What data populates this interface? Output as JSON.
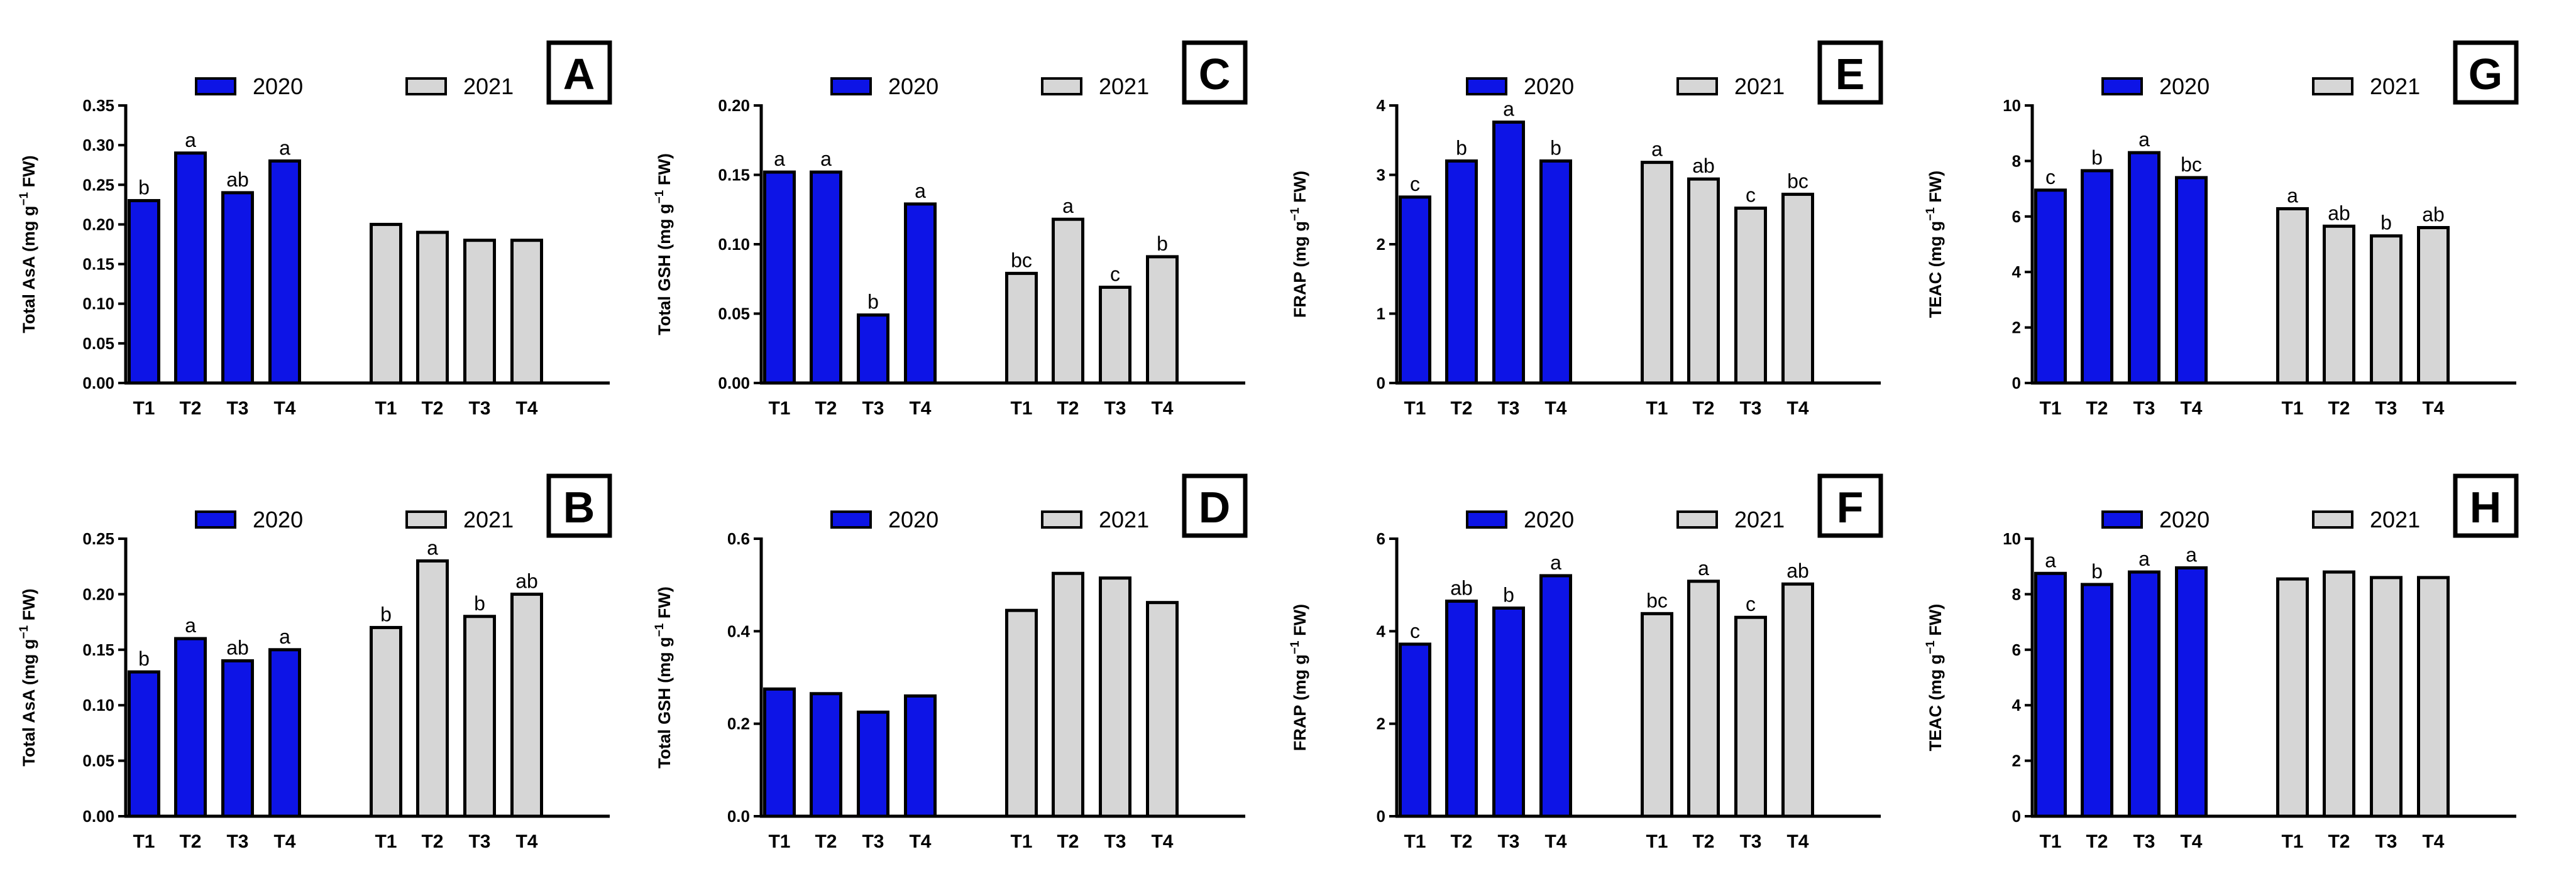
{
  "colors": {
    "series_2020": "#0d14e6",
    "series_2021": "#d6d6d6",
    "outline": "#000000"
  },
  "chart_data": [
    {
      "panel": "A",
      "type": "bar",
      "ylabel_main": "Total AsA (mg g",
      "ylabel_sup": "−1",
      "ylabel_end": " FW)",
      "ylim": [
        0,
        0.35
      ],
      "yticks": [
        "0.00",
        "0.05",
        "0.10",
        "0.15",
        "0.20",
        "0.25",
        "0.30",
        "0.35"
      ],
      "categories": [
        "T1",
        "T2",
        "T3",
        "T4"
      ],
      "series": [
        {
          "name": "2020",
          "values": [
            0.23,
            0.29,
            0.24,
            0.28
          ],
          "letters": [
            "b",
            "a",
            "ab",
            "a"
          ]
        },
        {
          "name": "2021",
          "values": [
            0.2,
            0.19,
            0.18,
            0.18
          ],
          "letters": [
            "",
            "",
            "",
            ""
          ]
        }
      ]
    },
    {
      "panel": "C",
      "type": "bar",
      "ylabel_main": "Total GSH (mg g",
      "ylabel_sup": "−1",
      "ylabel_end": " FW)",
      "ylim": [
        0,
        0.2
      ],
      "yticks": [
        "0.00",
        "0.05",
        "0.10",
        "0.15",
        "0.20"
      ],
      "categories": [
        "T1",
        "T2",
        "T3",
        "T4"
      ],
      "series": [
        {
          "name": "2020",
          "values": [
            0.152,
            0.152,
            0.049,
            0.129
          ],
          "letters": [
            "a",
            "a",
            "b",
            "a"
          ]
        },
        {
          "name": "2021",
          "values": [
            0.079,
            0.118,
            0.069,
            0.091
          ],
          "letters": [
            "bc",
            "a",
            "c",
            "b"
          ]
        }
      ]
    },
    {
      "panel": "E",
      "type": "bar",
      "ylabel_main": "FRAP (mg g",
      "ylabel_sup": "−1",
      "ylabel_end": " FW)",
      "ylim": [
        0,
        4
      ],
      "yticks": [
        "0",
        "1",
        "2",
        "3",
        "4"
      ],
      "categories": [
        "T1",
        "T2",
        "T3",
        "T4"
      ],
      "series": [
        {
          "name": "2020",
          "values": [
            2.68,
            3.2,
            3.76,
            3.2
          ],
          "letters": [
            "c",
            "b",
            "a",
            "b"
          ]
        },
        {
          "name": "2021",
          "values": [
            3.18,
            2.94,
            2.52,
            2.72
          ],
          "letters": [
            "a",
            "ab",
            "c",
            "bc"
          ]
        }
      ]
    },
    {
      "panel": "G",
      "type": "bar",
      "ylabel_main": "TEAC (mg g",
      "ylabel_sup": "−1",
      "ylabel_end": " FW)",
      "ylim": [
        0,
        10
      ],
      "yticks": [
        "0",
        "2",
        "4",
        "6",
        "8",
        "10"
      ],
      "categories": [
        "T1",
        "T2",
        "T3",
        "T4"
      ],
      "series": [
        {
          "name": "2020",
          "values": [
            6.95,
            7.65,
            8.3,
            7.4
          ],
          "letters": [
            "c",
            "b",
            "a",
            "bc"
          ]
        },
        {
          "name": "2021",
          "values": [
            6.28,
            5.65,
            5.3,
            5.6
          ],
          "letters": [
            "a",
            "ab",
            "b",
            "ab"
          ]
        }
      ]
    },
    {
      "panel": "B",
      "type": "bar",
      "ylabel_main": "Total AsA (mg g",
      "ylabel_sup": "−1",
      "ylabel_end": " FW)",
      "ylim": [
        0,
        0.25
      ],
      "yticks": [
        "0.00",
        "0.05",
        "0.10",
        "0.15",
        "0.20",
        "0.25"
      ],
      "categories": [
        "T1",
        "T2",
        "T3",
        "T4"
      ],
      "series": [
        {
          "name": "2020",
          "values": [
            0.13,
            0.16,
            0.14,
            0.15
          ],
          "letters": [
            "b",
            "a",
            "ab",
            "a"
          ]
        },
        {
          "name": "2021",
          "values": [
            0.17,
            0.23,
            0.18,
            0.2
          ],
          "letters": [
            "b",
            "a",
            "b",
            "ab"
          ]
        }
      ]
    },
    {
      "panel": "D",
      "type": "bar",
      "ylabel_main": "Total GSH (mg g",
      "ylabel_sup": "−1",
      "ylabel_end": " FW)",
      "ylim": [
        0,
        0.6
      ],
      "yticks": [
        "0.0",
        "0.2",
        "0.4",
        "0.6"
      ],
      "categories": [
        "T1",
        "T2",
        "T3",
        "T4"
      ],
      "series": [
        {
          "name": "2020",
          "values": [
            0.275,
            0.265,
            0.225,
            0.26
          ],
          "letters": [
            "",
            "",
            "",
            ""
          ]
        },
        {
          "name": "2021",
          "values": [
            0.445,
            0.525,
            0.515,
            0.462
          ],
          "letters": [
            "",
            "",
            "",
            ""
          ]
        }
      ]
    },
    {
      "panel": "F",
      "type": "bar",
      "ylabel_main": "FRAP (mg g",
      "ylabel_sup": "−1",
      "ylabel_end": " FW)",
      "ylim": [
        0,
        6
      ],
      "yticks": [
        "0",
        "2",
        "4",
        "6"
      ],
      "categories": [
        "T1",
        "T2",
        "T3",
        "T4"
      ],
      "series": [
        {
          "name": "2020",
          "values": [
            3.72,
            4.65,
            4.5,
            5.2
          ],
          "letters": [
            "c",
            "ab",
            "b",
            "a"
          ]
        },
        {
          "name": "2021",
          "values": [
            4.38,
            5.08,
            4.3,
            5.02
          ],
          "letters": [
            "bc",
            "a",
            "c",
            "ab"
          ]
        }
      ]
    },
    {
      "panel": "H",
      "type": "bar",
      "ylabel_main": "TEAC (mg g",
      "ylabel_sup": "−1",
      "ylabel_end": " FW)",
      "ylim": [
        0,
        10
      ],
      "yticks": [
        "0",
        "2",
        "4",
        "6",
        "8",
        "10"
      ],
      "categories": [
        "T1",
        "T2",
        "T3",
        "T4"
      ],
      "series": [
        {
          "name": "2020",
          "values": [
            8.75,
            8.35,
            8.8,
            8.95
          ],
          "letters": [
            "a",
            "b",
            "a",
            "a"
          ]
        },
        {
          "name": "2021",
          "values": [
            8.55,
            8.8,
            8.6,
            8.6
          ],
          "letters": [
            "",
            "",
            "",
            ""
          ]
        }
      ]
    }
  ]
}
